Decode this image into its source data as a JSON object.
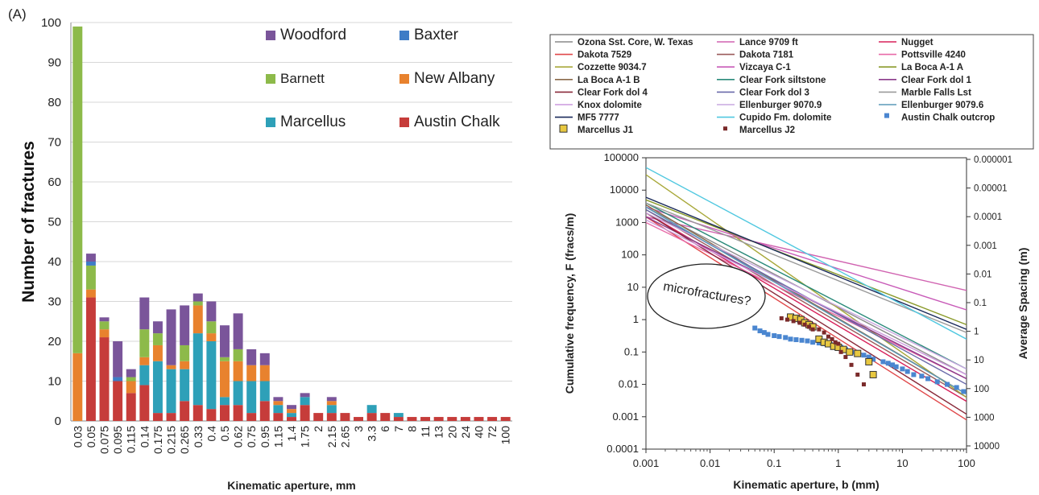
{
  "panel_label": "(A)",
  "chart_data": [
    {
      "type": "bar",
      "stacked": true,
      "xlabel": "Kinematic aperture, mm",
      "ylabel": "Number of fractures",
      "ylim": [
        0,
        100
      ],
      "yticks": [
        0,
        10,
        20,
        30,
        40,
        50,
        60,
        70,
        80,
        90,
        100
      ],
      "grid": true,
      "legend_position": "top-right",
      "categories": [
        "0.03",
        "0.05",
        "0.075",
        "0.095",
        "0.115",
        "0.14",
        "0.175",
        "0.215",
        "0.265",
        "0.33",
        "0.4",
        "0.5",
        "0.62",
        "0.75",
        "0.95",
        "1.15",
        "1.4",
        "1.75",
        "2",
        "2.15",
        "2.65",
        "3",
        "3.3",
        "6",
        "7",
        "8",
        "11",
        "13",
        "20",
        "24",
        "40",
        "72",
        "100"
      ],
      "category_labels_note": "each printed tick label sits under one bar; bars between labeled ticks use these labels",
      "series": [
        {
          "name": "Austin Chalk",
          "color": "#c63c3a",
          "values": [
            0,
            31,
            21,
            10,
            7,
            9,
            2,
            2,
            5,
            4,
            3,
            4,
            4,
            2,
            5,
            2,
            1,
            4,
            2,
            2,
            2,
            1,
            2,
            2,
            1,
            1,
            1,
            1,
            1,
            1,
            1,
            1,
            1
          ]
        },
        {
          "name": "Marcellus",
          "color": "#2ea0b8",
          "values": [
            0,
            0,
            0,
            0,
            0,
            5,
            13,
            11,
            8,
            18,
            17,
            2,
            6,
            8,
            5,
            2,
            1,
            2,
            0,
            2,
            0,
            0,
            2,
            0,
            1,
            0,
            0,
            0,
            0,
            0,
            0,
            0,
            0
          ]
        },
        {
          "name": "New Albany",
          "color": "#e8822e",
          "values": [
            17,
            2,
            2,
            0,
            3,
            2,
            4,
            1,
            2,
            7,
            2,
            9,
            5,
            4,
            4,
            1,
            1,
            0,
            0,
            1,
            0,
            0,
            0,
            0,
            0,
            0,
            0,
            0,
            0,
            0,
            0,
            0,
            0
          ]
        },
        {
          "name": "Barnett",
          "color": "#8dba4a",
          "values": [
            82,
            6,
            2,
            0,
            1,
            7,
            3,
            0,
            4,
            1,
            3,
            1,
            3,
            0,
            0,
            0,
            0,
            0,
            0,
            0,
            0,
            0,
            0,
            0,
            0,
            0,
            0,
            0,
            0,
            0,
            0,
            0,
            0
          ]
        },
        {
          "name": "Baxter",
          "color": "#3e7cc6",
          "values": [
            0,
            1,
            0,
            1,
            0,
            0,
            0,
            0,
            0,
            0,
            0,
            0,
            0,
            0,
            0,
            0,
            0,
            0,
            0,
            0,
            0,
            0,
            0,
            0,
            0,
            0,
            0,
            0,
            0,
            0,
            0,
            0,
            0
          ]
        },
        {
          "name": "Woodford",
          "color": "#7a559a",
          "values": [
            0,
            2,
            1,
            9,
            2,
            8,
            3,
            14,
            10,
            2,
            5,
            8,
            9,
            4,
            3,
            1,
            1,
            1,
            0,
            1,
            0,
            0,
            0,
            0,
            0,
            0,
            0,
            0,
            0,
            0,
            0,
            0,
            0
          ]
        }
      ],
      "legend": [
        {
          "name": "Woodford",
          "color": "#7a559a"
        },
        {
          "name": "Baxter",
          "color": "#3e7cc6"
        },
        {
          "name": "Barnett",
          "color": "#8dba4a"
        },
        {
          "name": "New Albany",
          "color": "#e8822e"
        },
        {
          "name": "Marcellus",
          "color": "#2ea0b8"
        },
        {
          "name": "Austin Chalk",
          "color": "#c63c3a"
        }
      ]
    },
    {
      "type": "line",
      "xscale": "log",
      "yscale": "log",
      "xlabel": "Kinematic aperture, b (mm)",
      "ylabel": "Cumulative frequency, F (fracs/m)",
      "y2label": "Average Spacing (m)",
      "xlim": [
        0.001,
        100
      ],
      "ylim": [
        0.0001,
        100000
      ],
      "xticks": [
        "0.001",
        "0.01",
        "0.1",
        "1",
        "10",
        "100"
      ],
      "yticks": [
        "0.0001",
        "0.001",
        "0.01",
        "0.1",
        "1",
        "10",
        "100",
        "1000",
        "10000",
        "100000"
      ],
      "y2ticks": [
        "10000",
        "1000",
        "100",
        "10",
        "1",
        "0.1",
        "0.01",
        "0.001",
        "0.0001",
        "0.00001",
        "0.000001"
      ],
      "legend_position": "top",
      "annotation": "microfractures?",
      "series": [
        {
          "name": "Ozona Sst. Core, W. Texas",
          "color": "#8a8a8a",
          "x": [
            0.001,
            100
          ],
          "y": [
            3000,
            0.02
          ]
        },
        {
          "name": "Lance 9709 ft",
          "color": "#d062b0",
          "x": [
            0.001,
            100
          ],
          "y": [
            1500,
            8
          ]
        },
        {
          "name": "Nugget",
          "color": "#d8205a",
          "x": [
            0.001,
            100
          ],
          "y": [
            2000,
            0.003
          ]
        },
        {
          "name": "Dakota 7529",
          "color": "#e0484a",
          "x": [
            0.001,
            100
          ],
          "y": [
            1500,
            0.0008
          ]
        },
        {
          "name": "Dakota 7181",
          "color": "#9a5a5a",
          "x": [
            0.001,
            100
          ],
          "y": [
            2500,
            0.004
          ]
        },
        {
          "name": "Pottsville 4240",
          "color": "#e86aa8",
          "x": [
            0.001,
            100
          ],
          "y": [
            1000,
            0.015
          ]
        },
        {
          "name": "Cozzette 9034.7",
          "color": "#a8a83a",
          "x": [
            0.001,
            100
          ],
          "y": [
            30000,
            0.004
          ]
        },
        {
          "name": "Vizcaya C-1",
          "color": "#c85ab8",
          "x": [
            0.001,
            100
          ],
          "y": [
            3000,
            2
          ]
        },
        {
          "name": "La Boca A-1 A",
          "color": "#8a9a2a",
          "x": [
            0.001,
            100
          ],
          "y": [
            5000,
            0.7
          ]
        },
        {
          "name": "La Boca A-1 B",
          "color": "#8a6a4a",
          "x": [
            0.001,
            100
          ],
          "y": [
            3500,
            0.005
          ]
        },
        {
          "name": "Clear Fork siltstone",
          "color": "#2a8a7a",
          "x": [
            0.001,
            100
          ],
          "y": [
            4000,
            0.03
          ]
        },
        {
          "name": "Clear Fork dol 1",
          "color": "#8a3a8a",
          "x": [
            0.001,
            100
          ],
          "y": [
            1500,
            0.015
          ]
        },
        {
          "name": "Clear Fork dol 4",
          "color": "#8a2a3a",
          "x": [
            0.001,
            100
          ],
          "y": [
            2000,
            0.0012
          ]
        },
        {
          "name": "Clear Fork dol 3",
          "color": "#6a6aaa",
          "x": [
            0.001,
            100
          ],
          "y": [
            2500,
            0.01
          ]
        },
        {
          "name": "Marble Falls Lst",
          "color": "#9a9a9a",
          "x": [
            0.001,
            100
          ],
          "y": [
            4000,
            0.4
          ]
        },
        {
          "name": "Knox dolomite",
          "color": "#cc99dd",
          "x": [
            0.001,
            100
          ],
          "y": [
            1200,
            0.02
          ]
        },
        {
          "name": "Ellenburger 9070.9",
          "color": "#c9a8e0",
          "x": [
            0.001,
            100
          ],
          "y": [
            2000,
            0.03
          ]
        },
        {
          "name": "Ellenburger 9079.6",
          "color": "#5a9ab8",
          "x": [
            0.001,
            100
          ],
          "y": [
            3000,
            0.005
          ]
        },
        {
          "name": "MF5 7777",
          "color": "#1a2a5a",
          "x": [
            0.001,
            100
          ],
          "y": [
            6000,
            0.5
          ]
        },
        {
          "name": "Cupido Fm. dolomite",
          "color": "#50c8e0",
          "x": [
            0.001,
            100
          ],
          "y": [
            50000,
            0.25
          ]
        }
      ],
      "scatter_series": [
        {
          "name": "Austin Chalk outcrop",
          "color": "#4a86d0",
          "marker": "square",
          "x": [
            0.05,
            0.06,
            0.07,
            0.08,
            0.1,
            0.12,
            0.15,
            0.18,
            0.22,
            0.27,
            0.33,
            0.4,
            0.5,
            0.6,
            0.75,
            0.9,
            1.1,
            1.3,
            1.6,
            2,
            2.5,
            3,
            3.5,
            5,
            6,
            7,
            8,
            10,
            12,
            15,
            20,
            25,
            35,
            50,
            70,
            90
          ],
          "y": [
            0.55,
            0.45,
            0.4,
            0.35,
            0.32,
            0.3,
            0.28,
            0.25,
            0.24,
            0.23,
            0.22,
            0.2,
            0.19,
            0.18,
            0.17,
            0.15,
            0.14,
            0.12,
            0.1,
            0.09,
            0.08,
            0.07,
            0.06,
            0.05,
            0.045,
            0.04,
            0.035,
            0.03,
            0.025,
            0.02,
            0.018,
            0.015,
            0.012,
            0.01,
            0.008,
            0.006
          ]
        },
        {
          "name": "Marcellus J1",
          "color": "#e8c840",
          "marker": "square-outline",
          "x": [
            0.18,
            0.22,
            0.26,
            0.3,
            0.35,
            0.4,
            0.5,
            0.6,
            0.7,
            0.85,
            1,
            1.2,
            1.5,
            2,
            3,
            3.5
          ],
          "y": [
            1.2,
            1.1,
            1.0,
            0.8,
            0.7,
            0.6,
            0.25,
            0.2,
            0.18,
            0.15,
            0.14,
            0.12,
            0.1,
            0.09,
            0.05,
            0.02
          ]
        },
        {
          "name": "Marcellus J2",
          "color": "#7a2a2a",
          "marker": "square-small",
          "x": [
            0.13,
            0.16,
            0.2,
            0.25,
            0.3,
            0.35,
            0.4,
            0.5,
            0.6,
            0.7,
            0.8,
            0.9,
            1,
            1.1,
            1.3,
            1.6,
            2,
            2.5
          ],
          "y": [
            1.1,
            1.0,
            0.9,
            0.8,
            0.7,
            0.6,
            0.5,
            0.5,
            0.4,
            0.3,
            0.25,
            0.2,
            0.18,
            0.1,
            0.07,
            0.04,
            0.02,
            0.01
          ]
        }
      ]
    }
  ]
}
